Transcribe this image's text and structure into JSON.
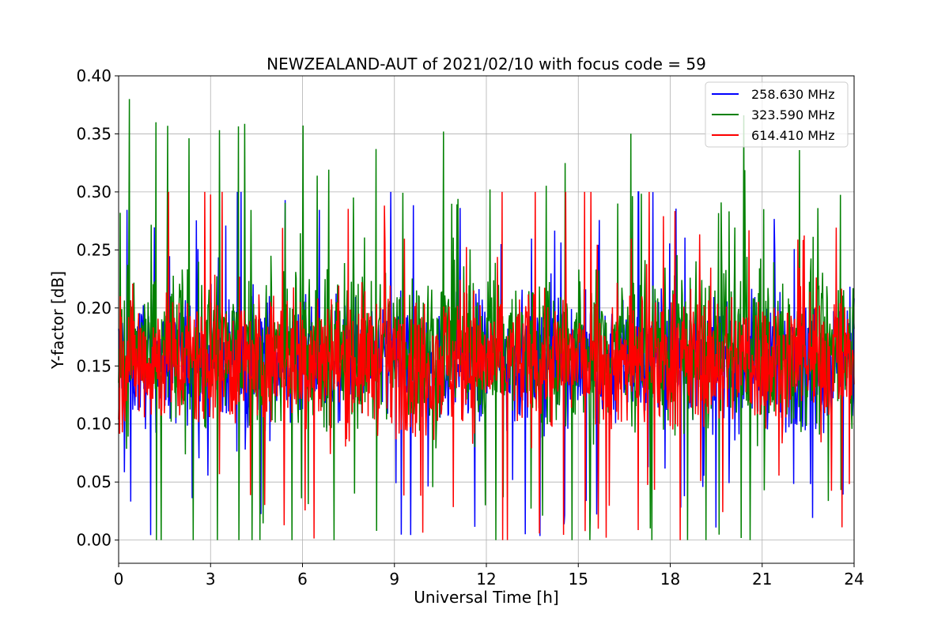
{
  "chart_data": {
    "type": "line",
    "title": "NEWZEALAND-AUT of 2021/02/10 with focus code = 59",
    "xlabel": "Universal Time [h]",
    "ylabel": "Y-factor [dB]",
    "xlim": [
      0,
      24
    ],
    "ylim": [
      -0.02,
      0.4
    ],
    "xticks": [
      0,
      3,
      6,
      9,
      12,
      15,
      18,
      21,
      24
    ],
    "xtick_labels": [
      "0",
      "3",
      "6",
      "9",
      "12",
      "15",
      "18",
      "21",
      "24"
    ],
    "yticks": [
      0.0,
      0.05,
      0.1,
      0.15,
      0.2,
      0.25,
      0.3,
      0.35,
      0.4
    ],
    "ytick_labels": [
      "0.00",
      "0.05",
      "0.10",
      "0.15",
      "0.20",
      "0.25",
      "0.30",
      "0.35",
      "0.40"
    ],
    "grid": true,
    "legend_position": "top-right",
    "series": [
      {
        "name": "258.630 MHz",
        "color": "#0000ff",
        "baseline": 0.155,
        "band_low": 0.085,
        "band_high": 0.245,
        "observed_min": 0.0,
        "observed_max": 0.3
      },
      {
        "name": "323.590 MHz",
        "color": "#008000",
        "baseline": 0.165,
        "band_low": 0.07,
        "band_high": 0.28,
        "observed_min": 0.0,
        "observed_max": 0.38,
        "peaks": [
          {
            "x": 0.35,
            "y": 0.38
          },
          {
            "x": 1.6,
            "y": 0.357
          },
          {
            "x": 10.6,
            "y": 0.352
          },
          {
            "x": 20.4,
            "y": 0.366
          },
          {
            "x": 8.4,
            "y": 0.337
          }
        ]
      },
      {
        "name": "614.410 MHz",
        "color": "#ff0000",
        "baseline": 0.155,
        "band_low": 0.075,
        "band_high": 0.25,
        "observed_min": 0.0,
        "observed_max": 0.3
      }
    ]
  }
}
